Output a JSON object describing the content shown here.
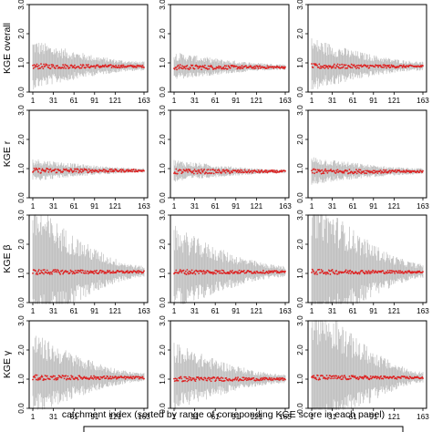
{
  "figure": {
    "xlabel": "catchment index (sorted by range of correponding KGE score in each panel)"
  },
  "rows": [
    {
      "ylabel": "KGE overall"
    },
    {
      "ylabel": "KGE r"
    },
    {
      "ylabel": "KGE β"
    },
    {
      "ylabel": "KGE γ"
    }
  ],
  "colors": {
    "median": "#dd2222",
    "range": "#bdbdbd",
    "frame": "#000000"
  },
  "chart_data": {
    "type": "scatter",
    "layout": "4 rows x 3 columns of panels",
    "n_catchments": 163,
    "x_ticks": [
      1,
      31,
      61,
      91,
      121,
      163
    ],
    "y_ticks": [
      0.0,
      1.0,
      2.0,
      3.0
    ],
    "ylim": [
      0,
      3
    ],
    "xlim": [
      1,
      163
    ],
    "series": [
      "median KGE per catchment (red points)",
      "range across runs (grey vertical bars)"
    ],
    "panels": [
      {
        "row": 0,
        "col": 0,
        "median": 0.88,
        "spread_start": 0.55,
        "spread_end": 0.12
      },
      {
        "row": 0,
        "col": 1,
        "median": 0.85,
        "spread_start": 0.3,
        "spread_end": 0.08
      },
      {
        "row": 0,
        "col": 2,
        "median": 0.88,
        "spread_start": 0.6,
        "spread_end": 0.12
      },
      {
        "row": 1,
        "col": 0,
        "median": 0.93,
        "spread_start": 0.25,
        "spread_end": 0.06
      },
      {
        "row": 1,
        "col": 1,
        "median": 0.9,
        "spread_start": 0.25,
        "spread_end": 0.05
      },
      {
        "row": 1,
        "col": 2,
        "median": 0.9,
        "spread_start": 0.3,
        "spread_end": 0.08
      },
      {
        "row": 2,
        "col": 0,
        "median": 1.05,
        "spread_start": 1.6,
        "spread_end": 0.15
      },
      {
        "row": 2,
        "col": 1,
        "median": 1.05,
        "spread_start": 1.0,
        "spread_end": 0.15
      },
      {
        "row": 2,
        "col": 2,
        "median": 1.05,
        "spread_start": 1.8,
        "spread_end": 0.2
      },
      {
        "row": 3,
        "col": 0,
        "median": 1.05,
        "spread_start": 1.0,
        "spread_end": 0.12
      },
      {
        "row": 3,
        "col": 1,
        "median": 1.0,
        "spread_start": 0.8,
        "spread_end": 0.12
      },
      {
        "row": 3,
        "col": 2,
        "median": 1.05,
        "spread_start": 1.9,
        "spread_end": 0.15
      }
    ]
  }
}
